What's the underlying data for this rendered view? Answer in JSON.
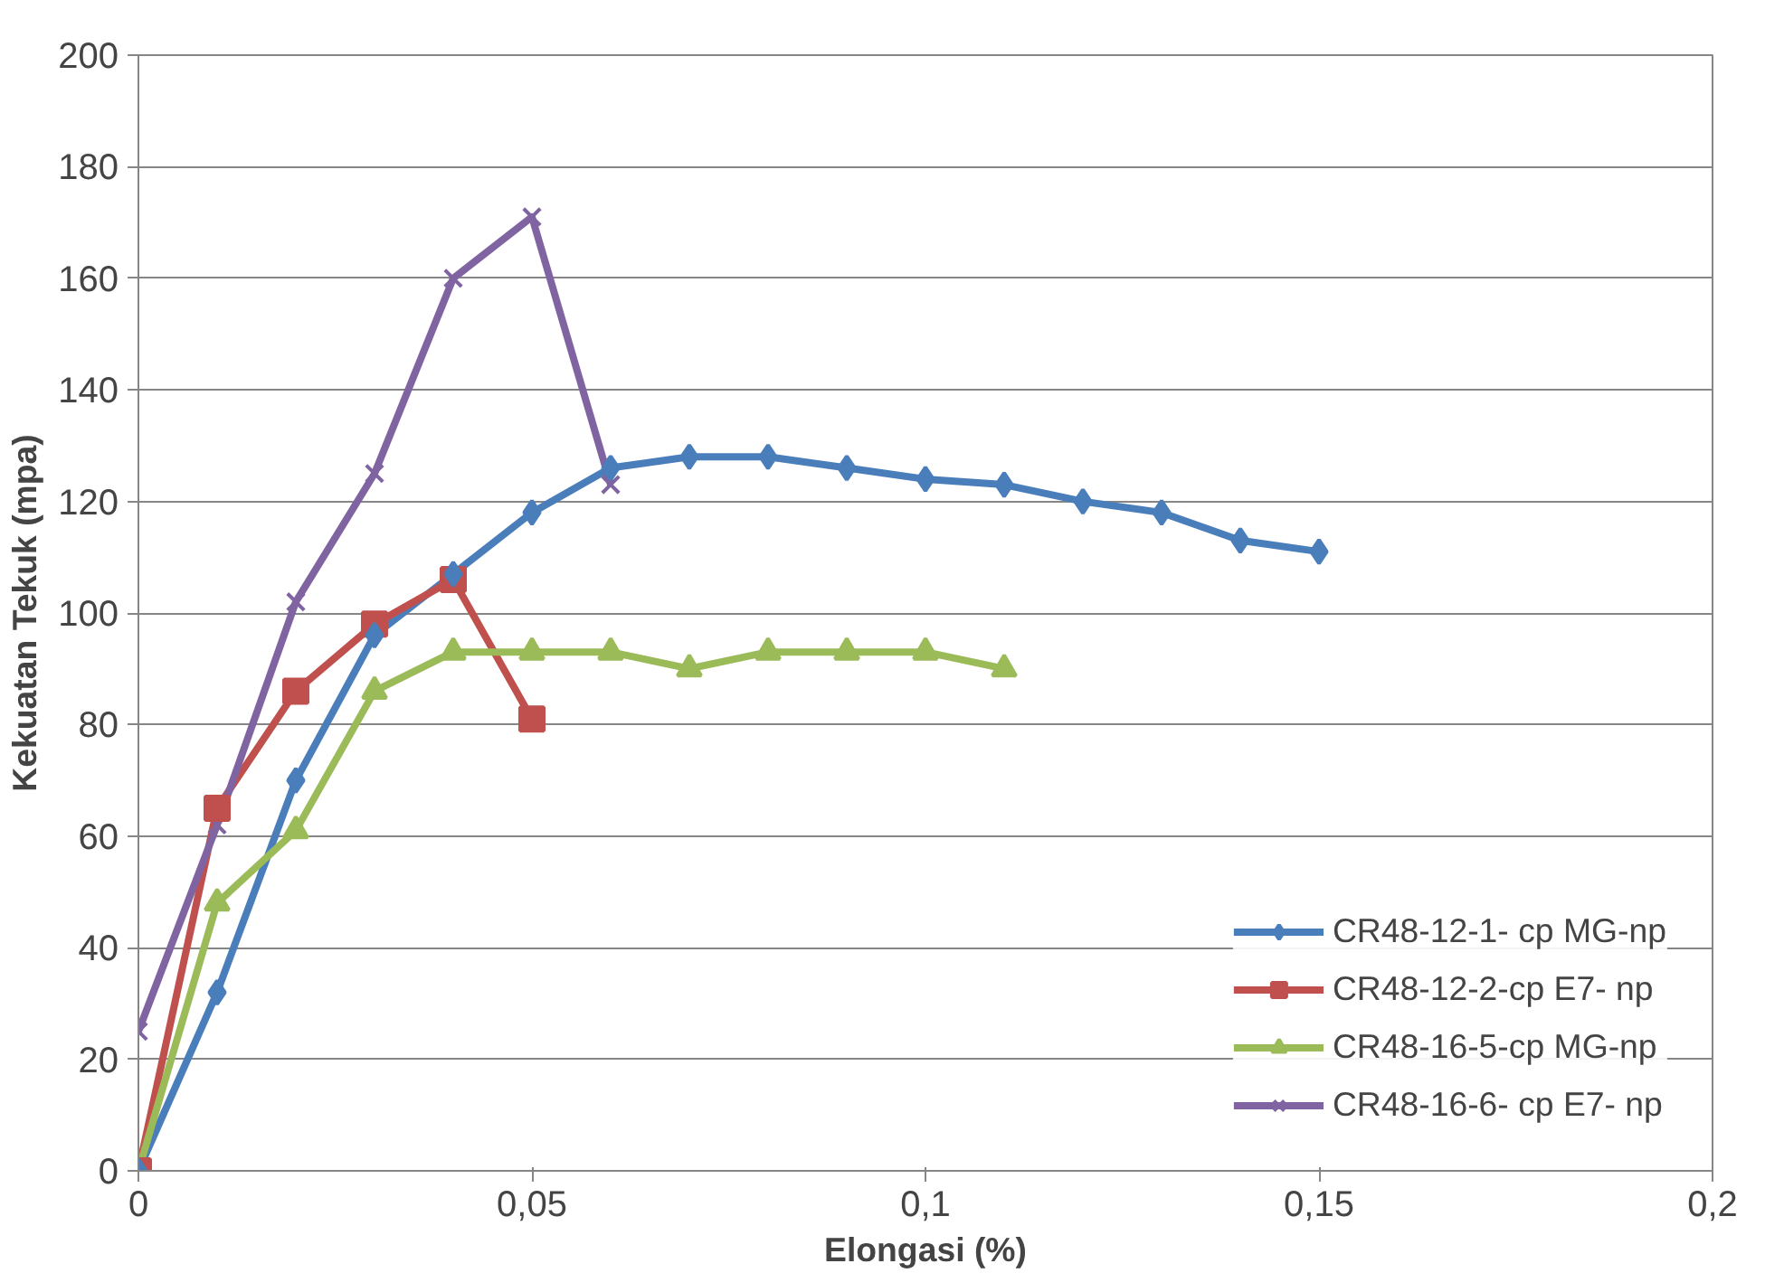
{
  "chart_data": {
    "type": "line",
    "xlabel": "Elongasi (%)",
    "ylabel": "Kekuatan Tekuk (mpa)",
    "xlim": [
      0,
      0.2
    ],
    "ylim": [
      0,
      200
    ],
    "xticks": [
      {
        "value": 0,
        "label": "0"
      },
      {
        "value": 0.05,
        "label": "0,05"
      },
      {
        "value": 0.1,
        "label": "0,1"
      },
      {
        "value": 0.15,
        "label": "0,15"
      },
      {
        "value": 0.2,
        "label": "0,2"
      }
    ],
    "yticks": [
      0,
      20,
      40,
      60,
      80,
      100,
      120,
      140,
      160,
      180,
      200
    ],
    "grid": "y",
    "legend": "right",
    "series": [
      {
        "name": "CR48-12-1- cp MG-np",
        "color": "#4a7ebb",
        "marker": "diamond",
        "x": [
          0,
          0.01,
          0.02,
          0.03,
          0.04,
          0.05,
          0.06,
          0.07,
          0.08,
          0.09,
          0.1,
          0.11,
          0.12,
          0.13,
          0.14,
          0.15
        ],
        "values": [
          0,
          32,
          70,
          96,
          107,
          118,
          126,
          128,
          128,
          126,
          124,
          123,
          120,
          118,
          113,
          111
        ]
      },
      {
        "name": "CR48-12-2-cp E7- np",
        "color": "#c0504d",
        "marker": "square",
        "x": [
          0,
          0.01,
          0.02,
          0.03,
          0.04,
          0.05
        ],
        "values": [
          0,
          65,
          86,
          98,
          106,
          81
        ]
      },
      {
        "name": "CR48-16-5-cp MG-np",
        "color": "#9bbb59",
        "marker": "triangle",
        "x": [
          0,
          0.01,
          0.02,
          0.03,
          0.04,
          0.05,
          0.06,
          0.07,
          0.08,
          0.09,
          0.1,
          0.11
        ],
        "values": [
          0,
          48,
          61,
          86,
          93,
          93,
          93,
          90,
          93,
          93,
          93,
          90
        ]
      },
      {
        "name": "CR48-16-6- cp E7- np",
        "color": "#8064a2",
        "marker": "cross",
        "x": [
          0,
          0.01,
          0.02,
          0.03,
          0.04,
          0.05,
          0.06
        ],
        "values": [
          25,
          62,
          102,
          125,
          160,
          171,
          123
        ]
      }
    ]
  }
}
